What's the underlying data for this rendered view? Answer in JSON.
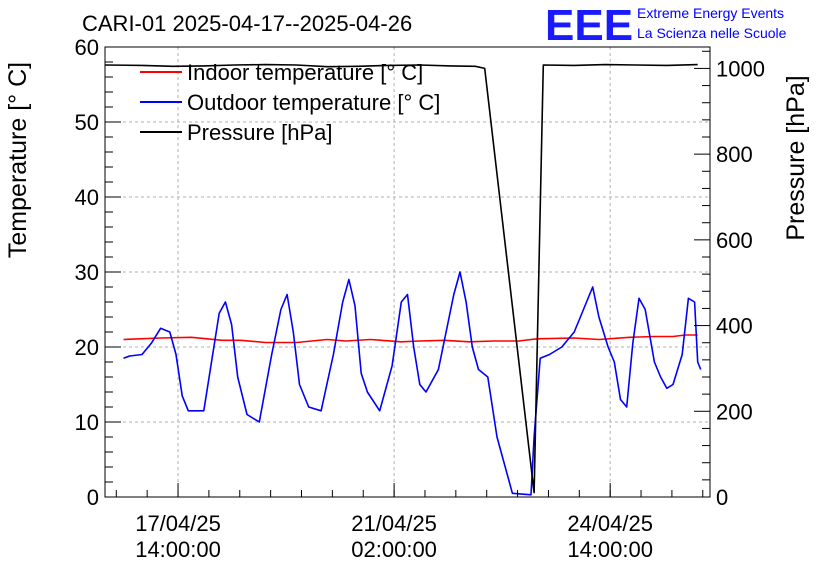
{
  "chart_data": {
    "type": "line",
    "title": "CARI-01 2025-04-17--2025-04-26",
    "ylabel": "Temperature [° C]",
    "y2label": "Pressure [hPa]",
    "xlabel": "",
    "ylim": [
      0,
      60
    ],
    "y2lim": [
      0,
      1050
    ],
    "xlim": [
      -0.6,
      9.2
    ],
    "x_unit": "days since 2025-04-17 00:00",
    "y_ticks": [
      "0",
      "10",
      "20",
      "30",
      "40",
      "50",
      "60"
    ],
    "y2_ticks": [
      "0",
      "200",
      "400",
      "600",
      "800",
      "1000"
    ],
    "x_ticks": [
      {
        "x": 0.583,
        "line1": "17/04/25",
        "line2": "14:00:00"
      },
      {
        "x": 4.083,
        "line1": "21/04/25",
        "line2": "02:00:00"
      },
      {
        "x": 7.583,
        "line1": "24/04/25",
        "line2": "14:00:00"
      }
    ],
    "grid": true,
    "legend_position": "top-left",
    "series": [
      {
        "name": "Indoor temperature [° C]",
        "color": "#ff0000",
        "axis": "left",
        "x": [
          -0.3,
          0.3,
          0.8,
          1.3,
          1.6,
          2.0,
          2.5,
          3.0,
          3.3,
          3.7,
          4.2,
          4.5,
          4.9,
          5.3,
          5.7,
          6.1,
          6.4,
          7.0,
          7.4,
          7.9,
          8.3,
          8.6,
          8.8,
          9.0
        ],
        "values": [
          21.0,
          21.2,
          21.3,
          20.9,
          20.9,
          20.6,
          20.6,
          21.0,
          20.8,
          21.0,
          20.7,
          20.8,
          20.9,
          20.7,
          20.8,
          20.8,
          21.1,
          21.2,
          21.0,
          21.3,
          21.4,
          21.4,
          21.6,
          21.6
        ]
      },
      {
        "name": "Outdoor temperature [° C]",
        "color": "#0000ff",
        "axis": "left",
        "x": [
          -0.3,
          -0.2,
          0.0,
          0.15,
          0.3,
          0.45,
          0.55,
          0.65,
          0.75,
          1.0,
          1.25,
          1.35,
          1.45,
          1.55,
          1.7,
          1.9,
          2.1,
          2.25,
          2.35,
          2.45,
          2.55,
          2.7,
          2.9,
          3.1,
          3.25,
          3.35,
          3.45,
          3.55,
          3.65,
          3.85,
          4.05,
          4.2,
          4.3,
          4.4,
          4.5,
          4.6,
          4.8,
          5.05,
          5.15,
          5.25,
          5.35,
          5.45,
          5.6,
          5.75,
          6.0,
          6.3,
          6.35,
          6.45,
          6.6,
          6.8,
          7.0,
          7.1,
          7.3,
          7.4,
          7.55,
          7.65,
          7.75,
          7.85,
          7.95,
          8.05,
          8.15,
          8.3,
          8.4,
          8.5,
          8.6,
          8.75,
          8.85,
          8.95,
          9.0,
          9.05
        ],
        "values": [
          18.5,
          18.8,
          19.0,
          20.5,
          22.5,
          22.0,
          19.0,
          13.5,
          11.5,
          11.5,
          24.5,
          26.0,
          23.0,
          16.0,
          11.0,
          10.0,
          19.0,
          25.0,
          27.0,
          22.0,
          15.0,
          12.0,
          11.5,
          19.0,
          26.0,
          29.0,
          25.5,
          16.5,
          14.0,
          11.5,
          17.5,
          26.0,
          27.0,
          20.0,
          15.0,
          14.0,
          17.0,
          27.0,
          30.0,
          26.0,
          20.0,
          17.0,
          16.0,
          8.0,
          0.5,
          0.3,
          8.0,
          18.5,
          19.0,
          20.0,
          22.0,
          24.0,
          28.0,
          24.0,
          20.0,
          18.0,
          13.0,
          12.0,
          20.5,
          26.5,
          25.0,
          18.0,
          16.0,
          14.5,
          15.0,
          19.0,
          26.5,
          26.0,
          18.0,
          17.0
        ]
      },
      {
        "name": "Pressure [hPa]",
        "color": "#000000",
        "axis": "right",
        "x": [
          -0.6,
          0.0,
          0.5,
          1.0,
          1.5,
          2.0,
          2.5,
          3.0,
          3.5,
          4.0,
          4.5,
          5.0,
          5.4,
          5.55,
          6.35,
          6.5,
          7.0,
          7.5,
          8.0,
          8.5,
          9.0
        ],
        "values": [
          1008,
          1007,
          1005,
          1006,
          1008,
          1009,
          1008,
          1004,
          1005,
          1007,
          1008,
          1006,
          1005,
          1000,
          10,
          1008,
          1007,
          1009,
          1008,
          1007,
          1009
        ]
      }
    ]
  },
  "logo": {
    "mark": "EEE",
    "line1": "Extreme Energy Events",
    "line2": "La Scienza nelle Scuole",
    "color": "#0000ff"
  }
}
